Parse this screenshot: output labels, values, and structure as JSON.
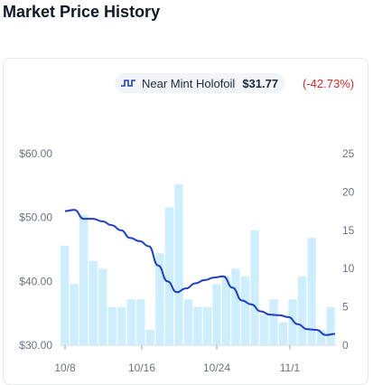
{
  "page": {
    "title": "Market Price History"
  },
  "legend": {
    "icon": "price-line-icon",
    "series_name": "Near Mint Holofoil",
    "price": "$31.77",
    "change": "(-42.73%)",
    "change_color": "#dc2626",
    "line_color": "#1d3fc7",
    "bar_color": "#cdeeff"
  },
  "chart_data": {
    "type": "bar+line",
    "title": "",
    "x_tick_labels": [
      "10/8",
      "10/16",
      "10/24",
      "11/1"
    ],
    "y_left": {
      "ticks": [
        "$30.00",
        "$40.00",
        "$50.00",
        "$60.00"
      ],
      "min": 30,
      "max": 60
    },
    "y_right": {
      "ticks": [
        "0",
        "5",
        "10",
        "15",
        "20",
        "25"
      ],
      "min": 0,
      "max": 25
    },
    "bars": {
      "axis": "right",
      "values": [
        13,
        8,
        17,
        11,
        10,
        5,
        5,
        6,
        6,
        2,
        12,
        18,
        21,
        6,
        5,
        5,
        8,
        9,
        10,
        9,
        15,
        4,
        6,
        3,
        6,
        9,
        14,
        2,
        5
      ]
    },
    "line": {
      "axis": "left",
      "series_name": "Near Mint Holofoil",
      "values": [
        51.0,
        51.2,
        49.8,
        49.8,
        49.4,
        48.8,
        48.0,
        46.8,
        46.3,
        45.5,
        42.5,
        40.0,
        38.3,
        38.9,
        39.7,
        40.2,
        40.6,
        40.8,
        39.0,
        37.0,
        36.4,
        35.3,
        34.8,
        34.7,
        34.4,
        33.3,
        32.5,
        32.4,
        31.6,
        31.77
      ]
    }
  }
}
